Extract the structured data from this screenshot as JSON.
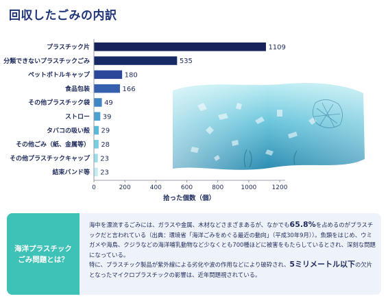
{
  "title": "回収したごみの内訳",
  "chart_data": {
    "type": "bar",
    "orientation": "horizontal",
    "categories": [
      "プラスチック片",
      "分類できないプラスチックごみ",
      "ペットボトルキャップ",
      "食品包装",
      "その他プラスチック袋",
      "ストロー",
      "タバコの吸い殻",
      "その他ごみ（紙、金属等）",
      "その他プラスチックキャップ",
      "結束バンド等"
    ],
    "values": [
      1109,
      535,
      180,
      166,
      49,
      39,
      29,
      28,
      23,
      23
    ],
    "bar_colors": [
      "#17225a",
      "#182a66",
      "#2a479a",
      "#3560ad",
      "#3f86c4",
      "#4ca2cf",
      "#58b9d9",
      "#77cee2",
      "#9edcea",
      "#c2ebf2"
    ],
    "xlabel": "拾った個数（個）",
    "ylabel": "",
    "xticks": [
      0,
      200,
      400,
      600,
      800,
      1000,
      1200
    ],
    "xlim": [
      0,
      1200
    ],
    "grid": false
  },
  "info": {
    "heading_line1": "海洋プラスチック",
    "heading_line2": "ごみ問題とは？",
    "p1_a": "海中を漂流するごみには、ガラスや金属、木材などさまざまあるが、なかでも",
    "p1_highlight": "65.8%",
    "p1_b": "を占めるのがプラスチックだと言われている（出典：環境省「海洋ごみをめぐる最近の動向」（平成30年9月））。魚類をはじめ、ウミガメや海鳥、クジラなどの海洋哺乳動物など少なくとも700種ほどに被害をもたらしているとされ、深刻な問題になっている。",
    "p2_a": "特に、プラスチック製品が紫外線による劣化や波の作用などにより破砕され、",
    "p2_highlight": "5ミリメートル以下",
    "p2_b": "の欠片となったマイクロプラスチックの影響は、近年問題視されている。"
  },
  "colors": {
    "accent_teal": "#3ec1b6",
    "info_bg": "#eef2f9",
    "title_navy": "#1f3478",
    "sea_light": "#9ee0ec",
    "sea_dark": "#2a8ab0"
  }
}
